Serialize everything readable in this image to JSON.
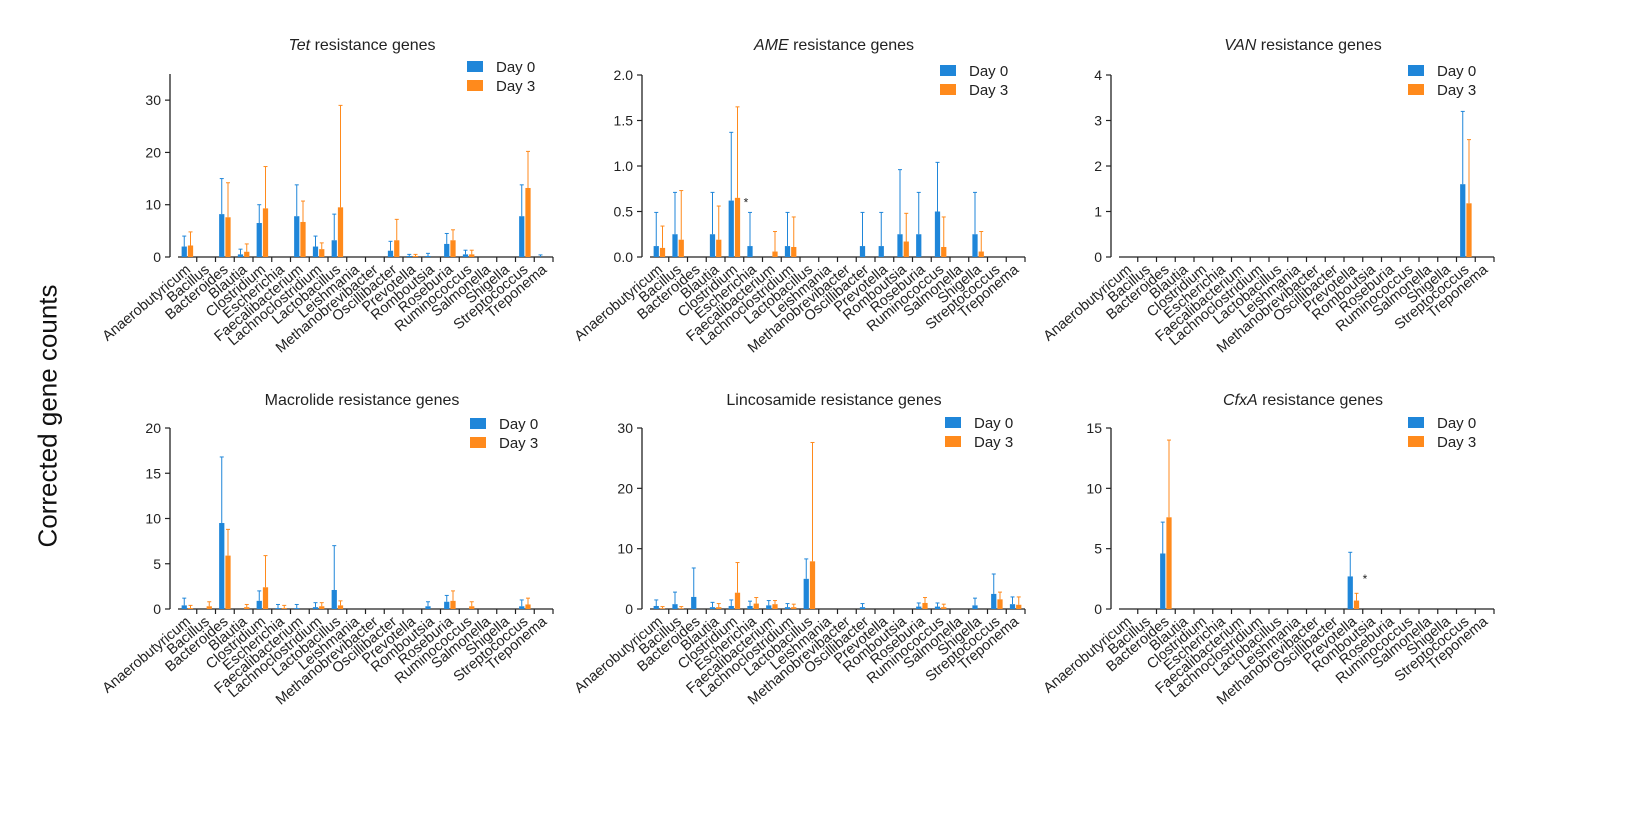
{
  "figure": {
    "shared_ylabel": "Corrected gene counts",
    "colors": {
      "day0": "#1f86d9",
      "day3": "#ff8a1c",
      "axis": "#222222",
      "text": "#222222"
    }
  },
  "chart_data": [
    {
      "type": "bar",
      "title": "Tet resistance genes",
      "title_italic": "Tet",
      "title_rest": " resistance genes",
      "ylabel": "Corrected gene counts",
      "ylim": [
        0,
        35
      ],
      "yticks": [
        "0",
        "10",
        "20",
        "30"
      ],
      "ytick_values": [
        0,
        10,
        20,
        30
      ],
      "legend": [
        "Day 0",
        "Day 3"
      ],
      "categories": [
        "Anaerobutyricum",
        "Bacillus",
        "Bacteroides",
        "Blautia",
        "Clostridium",
        "Escherichia",
        "Faecalibacterium",
        "Lachnoclostridium",
        "Lactobacillus",
        "Leishmania",
        "Methanobrevibacter",
        "Oscillibacter",
        "Prevotella",
        "Romboutsia",
        "Roseburia",
        "Ruminococcus",
        "Salmonella",
        "Shigella",
        "Streptococcus",
        "Treponema"
      ],
      "series": [
        {
          "name": "Day 0",
          "values": [
            2.0,
            0,
            8.2,
            0.5,
            6.5,
            0,
            7.8,
            2.0,
            3.2,
            0,
            0,
            1.2,
            0.2,
            0.2,
            2.5,
            0.5,
            0,
            0,
            7.8,
            0
          ],
          "errors": [
            2.0,
            0,
            6.8,
            1.0,
            3.5,
            0,
            6.0,
            2.0,
            5.0,
            0,
            0,
            1.8,
            0.3,
            0.5,
            2.0,
            0.8,
            0,
            0,
            6.0,
            0.4
          ]
        },
        {
          "name": "Day 3",
          "values": [
            2.2,
            0,
            7.6,
            1.0,
            9.3,
            0,
            6.7,
            1.5,
            9.5,
            0,
            0,
            3.2,
            0.2,
            0,
            3.2,
            0.5,
            0,
            0,
            13.2,
            0
          ],
          "errors": [
            2.6,
            0,
            6.6,
            1.5,
            8.0,
            0,
            4.0,
            1.2,
            19.5,
            0,
            0,
            4.0,
            0.3,
            0,
            2.0,
            0.8,
            0,
            0,
            7.0,
            0
          ]
        }
      ],
      "annotations": []
    },
    {
      "type": "bar",
      "title": "AME resistance genes",
      "title_italic": "AME",
      "title_rest": " resistance genes",
      "ylabel": "Corrected gene counts",
      "ylim": [
        0,
        2.0
      ],
      "yticks": [
        "0.0",
        "0.5",
        "1.0",
        "1.5",
        "2.0"
      ],
      "ytick_values": [
        0,
        0.5,
        1.0,
        1.5,
        2.0
      ],
      "legend": [
        "Day 0",
        "Day 3"
      ],
      "categories": [
        "Anaerobutyricum",
        "Bacillus",
        "Bacteroides",
        "Blautia",
        "Clostridium",
        "Escherichia",
        "Faecalibacterium",
        "Lachnoclostridium",
        "Lactobacillus",
        "Leishmania",
        "Methanobrevibacter",
        "Oscillibacter",
        "Prevotella",
        "Romboutsia",
        "Roseburia",
        "Ruminococcus",
        "Salmonella",
        "Shigella",
        "Streptococcus",
        "Treponema"
      ],
      "series": [
        {
          "name": "Day 0",
          "values": [
            0.12,
            0.25,
            0,
            0.25,
            0.62,
            0.12,
            0,
            0.12,
            0,
            0,
            0,
            0.12,
            0.12,
            0.25,
            0.25,
            0.5,
            0,
            0.25,
            0,
            0
          ],
          "errors": [
            0.37,
            0.46,
            0,
            0.46,
            0.75,
            0.37,
            0,
            0.37,
            0,
            0,
            0,
            0.37,
            0.37,
            0.71,
            0.46,
            0.54,
            0,
            0.46,
            0,
            0
          ]
        },
        {
          "name": "Day 3",
          "values": [
            0.1,
            0.19,
            0,
            0.19,
            0.65,
            0,
            0.06,
            0.11,
            0,
            0,
            0,
            0,
            0,
            0.17,
            0,
            0.11,
            0,
            0.06,
            0,
            0
          ],
          "errors": [
            0.24,
            0.54,
            0,
            0.37,
            1.0,
            0,
            0.22,
            0.33,
            0,
            0,
            0,
            0,
            0,
            0.31,
            0,
            0.33,
            0,
            0.22,
            0,
            0
          ]
        }
      ],
      "annotations": [
        {
          "text": "*",
          "category": "Clostridium"
        }
      ]
    },
    {
      "type": "bar",
      "title": "VAN resistance genes",
      "title_italic": "VAN",
      "title_rest": " resistance genes",
      "ylabel": "Corrected gene counts",
      "ylim": [
        0,
        4
      ],
      "yticks": [
        "0",
        "1",
        "2",
        "3",
        "4"
      ],
      "ytick_values": [
        0,
        1,
        2,
        3,
        4
      ],
      "legend": [
        "Day 0",
        "Day 3"
      ],
      "categories": [
        "Anaerobutyricum",
        "Bacillus",
        "Bacteroides",
        "Blautia",
        "Clostridium",
        "Escherichia",
        "Faecalibacterium",
        "Lachnoclostridium",
        "Lactobacillus",
        "Leishmania",
        "Methanobrevibacter",
        "Oscillibacter",
        "Prevotella",
        "Romboutsia",
        "Roseburia",
        "Ruminococcus",
        "Salmonella",
        "Shigella",
        "Streptococcus",
        "Treponema"
      ],
      "series": [
        {
          "name": "Day 0",
          "values": [
            0,
            0,
            0,
            0,
            0,
            0,
            0,
            0,
            0,
            0,
            0,
            0,
            0,
            0,
            0,
            0,
            0,
            0,
            1.6,
            0
          ],
          "errors": [
            0,
            0,
            0,
            0,
            0,
            0,
            0,
            0,
            0,
            0,
            0,
            0,
            0,
            0,
            0,
            0,
            0,
            0,
            1.6,
            0
          ]
        },
        {
          "name": "Day 3",
          "values": [
            0,
            0,
            0,
            0,
            0,
            0,
            0,
            0,
            0,
            0,
            0,
            0,
            0,
            0,
            0,
            0,
            0,
            0,
            1.18,
            0
          ],
          "errors": [
            0,
            0,
            0,
            0,
            0,
            0,
            0,
            0,
            0,
            0,
            0,
            0,
            0,
            0,
            0,
            0,
            0,
            0,
            1.4,
            0
          ]
        }
      ],
      "annotations": []
    },
    {
      "type": "bar",
      "title": "Macrolide resistance genes",
      "title_italic": "",
      "title_rest": "Macrolide resistance genes",
      "ylabel": "Corrected gene counts",
      "ylim": [
        0,
        20
      ],
      "yticks": [
        "0",
        "5",
        "10",
        "15",
        "20"
      ],
      "ytick_values": [
        0,
        5,
        10,
        15,
        20
      ],
      "legend": [
        "Day 0",
        "Day 3"
      ],
      "categories": [
        "Anaerobutyricum",
        "Bacillus",
        "Bacteroides",
        "Blautia",
        "Clostridium",
        "Escherichia",
        "Faecalibacterium",
        "Lachnoclostridium",
        "Lactobacillus",
        "Leishmania",
        "Methanobrevibacter",
        "Oscillibacter",
        "Prevotella",
        "Romboutsia",
        "Roseburia",
        "Ruminococcus",
        "Salmonella",
        "Shigella",
        "Streptococcus",
        "Treponema"
      ],
      "series": [
        {
          "name": "Day 0",
          "values": [
            0.4,
            0,
            9.5,
            0,
            0.9,
            0.1,
            0.1,
            0.2,
            2.1,
            0,
            0,
            0,
            0,
            0.3,
            0.8,
            0,
            0,
            0,
            0.3,
            0
          ],
          "errors": [
            0.8,
            0,
            7.3,
            0,
            1.1,
            0.4,
            0.4,
            0.5,
            4.9,
            0,
            0,
            0,
            0,
            0.5,
            0.7,
            0,
            0,
            0,
            0.7,
            0
          ]
        },
        {
          "name": "Day 3",
          "values": [
            0.1,
            0.3,
            5.9,
            0.2,
            2.4,
            0.1,
            0,
            0.3,
            0.4,
            0,
            0,
            0,
            0,
            0,
            0.9,
            0.3,
            0,
            0,
            0.5,
            0
          ],
          "errors": [
            0.3,
            0.5,
            2.9,
            0.3,
            3.5,
            0.3,
            0,
            0.4,
            0.5,
            0,
            0,
            0,
            0,
            0,
            1.1,
            0.5,
            0,
            0,
            0.7,
            0
          ]
        }
      ],
      "annotations": []
    },
    {
      "type": "bar",
      "title": "Lincosamide resistance genes",
      "title_italic": "",
      "title_rest": "Lincosamide resistance genes",
      "ylabel": "Corrected gene counts",
      "ylim": [
        0,
        30
      ],
      "yticks": [
        "0",
        "10",
        "20",
        "30"
      ],
      "ytick_values": [
        0,
        10,
        20,
        30
      ],
      "legend": [
        "Day 0",
        "Day 3"
      ],
      "categories": [
        "Anaerobutyricum",
        "Bacillus",
        "Bacteroides",
        "Blautia",
        "Clostridium",
        "Escherichia",
        "Faecalibacterium",
        "Lachnoclostridium",
        "Lactobacillus",
        "Leishmania",
        "Methanobrevibacter",
        "Oscillibacter",
        "Prevotella",
        "Romboutsia",
        "Roseburia",
        "Ruminococcus",
        "Salmonella",
        "Shigella",
        "Streptococcus",
        "Treponema"
      ],
      "series": [
        {
          "name": "Day 0",
          "values": [
            0.5,
            0.8,
            2.0,
            0.3,
            0.5,
            0.5,
            0.6,
            0.3,
            5.0,
            0,
            0,
            0.3,
            0,
            0,
            0.4,
            0.4,
            0,
            0.6,
            2.5,
            0.8
          ],
          "errors": [
            1.0,
            2.0,
            4.8,
            0.8,
            1.0,
            0.8,
            0.8,
            0.6,
            3.3,
            0,
            0,
            0.6,
            0,
            0,
            0.6,
            0.6,
            0,
            1.2,
            3.3,
            1.2
          ]
        },
        {
          "name": "Day 3",
          "values": [
            0.1,
            0.1,
            0,
            0.3,
            2.7,
            0.9,
            0.8,
            0.3,
            7.9,
            0,
            0,
            0,
            0,
            0,
            1.0,
            0.3,
            0,
            0,
            1.6,
            0.7
          ],
          "errors": [
            0.3,
            0.3,
            0,
            0.6,
            5.0,
            1.0,
            0.6,
            0.5,
            19.7,
            0,
            0,
            0,
            0,
            0,
            0.9,
            0.5,
            0,
            0,
            1.2,
            1.3
          ]
        }
      ],
      "annotations": []
    },
    {
      "type": "bar",
      "title": "CfxA resistance genes",
      "title_italic": "CfxA",
      "title_rest": " resistance genes",
      "ylabel": "Corrected gene counts",
      "ylim": [
        0,
        15
      ],
      "yticks": [
        "0",
        "5",
        "10",
        "15"
      ],
      "ytick_values": [
        0,
        5,
        10,
        15
      ],
      "legend": [
        "Day 0",
        "Day 3"
      ],
      "categories": [
        "Anaerobutyricum",
        "Bacillus",
        "Bacteroides",
        "Blautia",
        "Clostridium",
        "Escherichia",
        "Faecalibacterium",
        "Lachnoclostridium",
        "Lactobacillus",
        "Leishmania",
        "Methanobrevibacter",
        "Oscillibacter",
        "Prevotella",
        "Romboutsia",
        "Roseburia",
        "Ruminococcus",
        "Salmonella",
        "Shigella",
        "Streptococcus",
        "Treponema"
      ],
      "series": [
        {
          "name": "Day 0",
          "values": [
            0,
            0,
            4.6,
            0,
            0,
            0,
            0,
            0,
            0,
            0,
            0,
            0,
            2.7,
            0,
            0,
            0,
            0,
            0,
            0,
            0
          ],
          "errors": [
            0,
            0,
            2.6,
            0,
            0,
            0,
            0,
            0,
            0,
            0,
            0,
            0,
            2.0,
            0,
            0,
            0,
            0,
            0,
            0,
            0
          ]
        },
        {
          "name": "Day 3",
          "values": [
            0,
            0,
            7.6,
            0,
            0,
            0,
            0,
            0,
            0,
            0,
            0,
            0,
            0.7,
            0,
            0,
            0,
            0,
            0,
            0,
            0
          ],
          "errors": [
            0,
            0,
            6.4,
            0,
            0,
            0,
            0,
            0,
            0,
            0,
            0,
            0,
            0.6,
            0,
            0,
            0,
            0,
            0,
            0,
            0
          ]
        }
      ],
      "annotations": [
        {
          "text": "*",
          "category": "Prevotella"
        }
      ]
    }
  ]
}
